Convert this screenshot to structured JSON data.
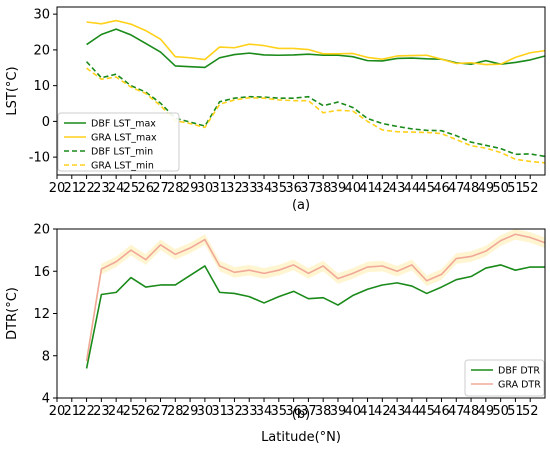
{
  "chart_data": [
    {
      "type": "line",
      "panel_label": "(a)",
      "ylabel": "LST(°C)",
      "xlim": [
        20,
        53
      ],
      "ylim": [
        -15,
        32
      ],
      "xticks": [
        20,
        21,
        22,
        23,
        24,
        25,
        26,
        27,
        28,
        29,
        30,
        31,
        32,
        33,
        34,
        35,
        36,
        37,
        38,
        39,
        40,
        41,
        42,
        43,
        44,
        45,
        46,
        47,
        48,
        49,
        50,
        51,
        52
      ],
      "yticks": [
        -10,
        0,
        10,
        20,
        30
      ],
      "legend_position": "lower-left",
      "x": [
        22,
        23,
        24,
        25,
        26,
        27,
        28,
        29,
        30,
        31,
        32,
        33,
        34,
        35,
        36,
        37,
        38,
        39,
        40,
        41,
        42,
        43,
        44,
        45,
        46,
        47,
        48,
        49,
        50,
        51,
        52,
        53
      ],
      "series": [
        {
          "name": "DBF LST_max",
          "color": "#1a8a1a",
          "dash": "solid",
          "values": [
            21.5,
            24.3,
            25.8,
            24.2,
            21.8,
            19.4,
            15.5,
            15.3,
            15.1,
            17.8,
            18.7,
            19.1,
            18.6,
            18.5,
            18.6,
            18.8,
            18.5,
            18.5,
            18.1,
            17.0,
            16.9,
            17.6,
            17.7,
            17.5,
            17.4,
            16.4,
            16.0,
            17.0,
            16.0,
            16.5,
            17.2,
            18.3
          ]
        },
        {
          "name": "GRA LST_max",
          "color": "#ffd11a",
          "dash": "solid",
          "values": [
            27.8,
            27.3,
            28.2,
            27.2,
            25.4,
            23.0,
            18.1,
            17.8,
            17.3,
            20.8,
            20.6,
            21.6,
            21.2,
            20.4,
            20.4,
            20.1,
            18.9,
            18.9,
            19.0,
            17.9,
            17.4,
            18.3,
            18.4,
            18.5,
            17.4,
            16.2,
            16.4,
            15.9,
            16.0,
            17.9,
            19.2,
            19.8
          ]
        },
        {
          "name": "DBF LST_min",
          "color": "#1a8a1a",
          "dash": "dashed",
          "values": [
            16.7,
            12.2,
            13.2,
            10.0,
            8.2,
            5.1,
            0.9,
            -0.2,
            -1.3,
            5.5,
            6.5,
            6.9,
            6.8,
            6.5,
            6.5,
            6.9,
            4.4,
            5.4,
            3.9,
            0.8,
            -0.6,
            -1.4,
            -2.1,
            -2.5,
            -2.6,
            -4.0,
            -5.8,
            -6.7,
            -7.6,
            -9.2,
            -9.1,
            -9.8
          ]
        },
        {
          "name": "GRA LST_min",
          "color": "#ffd11a",
          "dash": "dashed",
          "values": [
            14.9,
            11.8,
            12.4,
            9.6,
            7.8,
            4.4,
            0.2,
            -0.6,
            -1.7,
            4.8,
            6.0,
            6.6,
            6.5,
            6.0,
            5.8,
            5.8,
            2.4,
            3.1,
            2.9,
            0.0,
            -2.4,
            -2.9,
            -3.0,
            -3.1,
            -3.4,
            -5.1,
            -6.8,
            -7.5,
            -8.7,
            -10.6,
            -11.2,
            -11.6
          ]
        }
      ]
    },
    {
      "type": "line",
      "panel_label": "(b)",
      "ylabel": "DTR(°C)",
      "xlabel": "Latitude(°N)",
      "xlim": [
        20,
        53
      ],
      "ylim": [
        4,
        20
      ],
      "xticks": [
        20,
        21,
        22,
        23,
        24,
        25,
        26,
        27,
        28,
        29,
        30,
        31,
        32,
        33,
        34,
        35,
        36,
        37,
        38,
        39,
        40,
        41,
        42,
        43,
        44,
        45,
        46,
        47,
        48,
        49,
        50,
        51,
        52
      ],
      "yticks": [
        4,
        8,
        12,
        16,
        20
      ],
      "legend_position": "lower-right",
      "x": [
        22,
        23,
        24,
        25,
        26,
        27,
        28,
        29,
        30,
        31,
        32,
        33,
        34,
        35,
        36,
        37,
        38,
        39,
        40,
        41,
        42,
        43,
        44,
        45,
        46,
        47,
        48,
        49,
        50,
        51,
        52,
        53
      ],
      "band_color": "#fff3c4",
      "series": [
        {
          "name": "DBF DTR",
          "color": "#1a8a1a",
          "dash": "solid",
          "values": [
            6.8,
            13.8,
            14.0,
            15.4,
            14.5,
            14.7,
            14.7,
            15.6,
            16.5,
            14.0,
            13.9,
            13.6,
            13.0,
            13.6,
            14.1,
            13.4,
            13.5,
            12.8,
            13.7,
            14.3,
            14.7,
            14.9,
            14.6,
            13.9,
            14.5,
            15.2,
            15.5,
            16.3,
            16.6,
            16.1,
            16.4,
            16.4
          ]
        },
        {
          "name": "GRA DTR",
          "color": "#f0a898",
          "dash": "solid",
          "values": [
            7.5,
            16.2,
            16.9,
            18.0,
            17.1,
            18.5,
            17.6,
            18.2,
            19.0,
            16.5,
            15.9,
            16.1,
            15.8,
            16.1,
            16.6,
            15.8,
            16.5,
            15.3,
            15.8,
            16.4,
            16.5,
            16.0,
            16.6,
            15.1,
            15.7,
            17.2,
            17.4,
            17.9,
            18.9,
            19.5,
            19.2,
            18.7
          ]
        }
      ]
    }
  ]
}
